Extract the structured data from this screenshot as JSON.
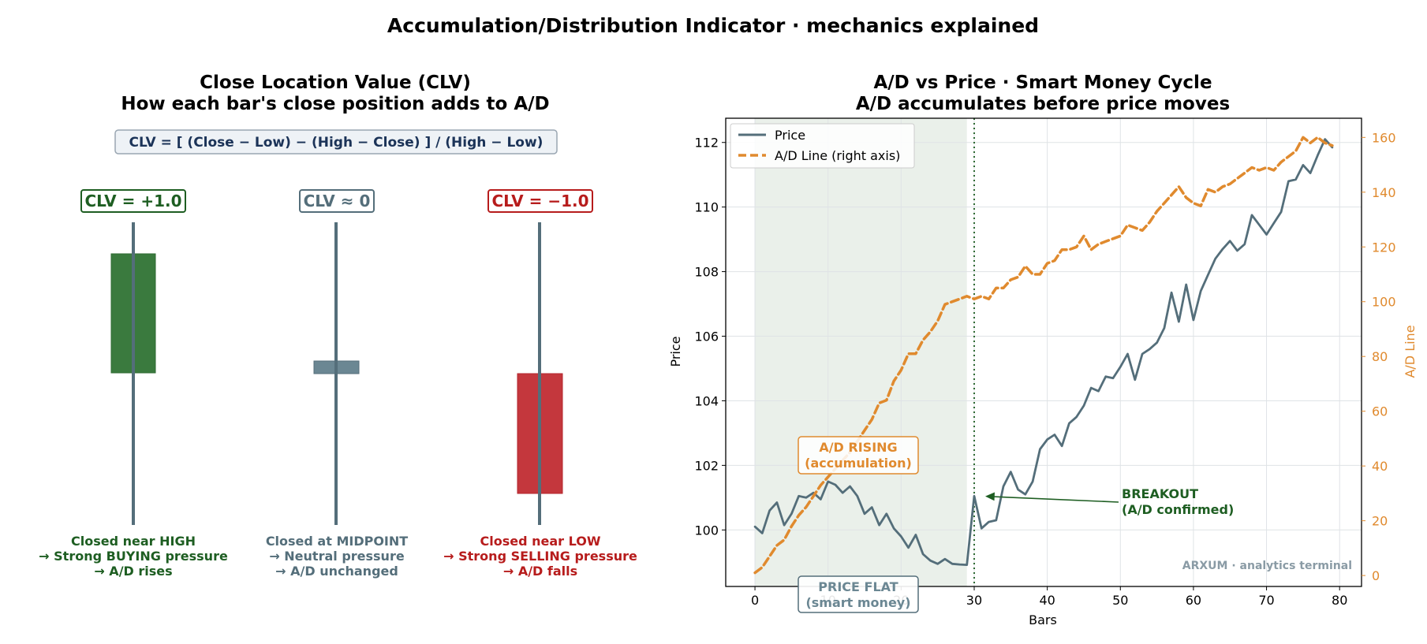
{
  "title": "Accumulation/Distribution Indicator · mechanics explained",
  "colors": {
    "green": "#1e5e22",
    "green_fill": "#3a7a3e",
    "slate": "#546e7a",
    "slate_fill": "#6b8793",
    "red": "#b71c1c",
    "red_fill": "#c4373d",
    "orange": "#e08a2e",
    "formula_text": "#1b3358",
    "shade": "#e3ebe3"
  },
  "left": {
    "title_line1": "Close Location Value (CLV)",
    "title_line2": "How each bar's close position adds to A/D",
    "formula": "CLV = [ (Close − Low) − (High − Close) ] / (High − Low)",
    "candles": [
      {
        "label": "CLV = +1.0",
        "color_key": "green",
        "lines": [
          "Closed near HIGH",
          "→ Strong BUYING pressure",
          "→ A/D rises"
        ]
      },
      {
        "label": "CLV ≈ 0",
        "color_key": "slate",
        "lines": [
          "Closed at MIDPOINT",
          "→ Neutral pressure",
          "→ A/D unchanged"
        ]
      },
      {
        "label": "CLV = −1.0",
        "color_key": "red",
        "lines": [
          "Closed near LOW",
          "→ Strong SELLING pressure",
          "→ A/D falls"
        ]
      }
    ]
  },
  "right": {
    "title_line1": "A/D vs Price · Smart Money Cycle",
    "title_line2": "A/D accumulates before price moves",
    "watermark": "ARXUM · analytics terminal",
    "annotations": {
      "ad_rising": [
        "A/D RISING",
        "(accumulation)"
      ],
      "price_flat": [
        "PRICE FLAT",
        "(smart money)"
      ],
      "breakout": [
        "BREAKOUT",
        "(A/D confirmed)"
      ]
    }
  },
  "chart_data": {
    "type": "line",
    "xlabel": "Bars",
    "ylabel": "Price",
    "y2label": "A/D Line",
    "xlim": [
      -4,
      83
    ],
    "ylim": [
      98.25,
      112.75
    ],
    "y2lim": [
      -4,
      167
    ],
    "xticks": [
      0,
      10,
      20,
      30,
      40,
      50,
      60,
      70,
      80
    ],
    "yticks": [
      100,
      102,
      104,
      106,
      108,
      110,
      112
    ],
    "y2ticks": [
      0,
      20,
      40,
      60,
      80,
      100,
      120,
      140,
      160
    ],
    "grid": true,
    "legend": "top-left",
    "shaded_region": [
      0,
      29
    ],
    "breakout_x": 30,
    "series": [
      {
        "name": "Price",
        "axis": "left",
        "color": "#546e7a",
        "style": "solid",
        "x": [
          0,
          1,
          2,
          3,
          4,
          5,
          6,
          7,
          8,
          9,
          10,
          11,
          12,
          13,
          14,
          15,
          16,
          17,
          18,
          19,
          20,
          21,
          22,
          23,
          24,
          25,
          26,
          27,
          28,
          29,
          30,
          31,
          32,
          33,
          34,
          35,
          36,
          37,
          38,
          39,
          40,
          41,
          42,
          43,
          44,
          45,
          46,
          47,
          48,
          49,
          50,
          51,
          52,
          53,
          54,
          55,
          56,
          57,
          58,
          59,
          60,
          61,
          62,
          63,
          64,
          65,
          66,
          67,
          68,
          69,
          70,
          71,
          72,
          73,
          74,
          75,
          76,
          77,
          78,
          79
        ],
        "values": [
          100.1,
          99.9,
          100.6,
          100.85,
          100.15,
          100.5,
          101.05,
          101.0,
          101.15,
          100.95,
          101.5,
          101.4,
          101.15,
          101.35,
          101.05,
          100.5,
          100.7,
          100.15,
          100.5,
          100.05,
          99.8,
          99.45,
          99.85,
          99.25,
          99.05,
          98.95,
          99.1,
          98.95,
          98.93,
          98.92,
          101.05,
          100.05,
          100.25,
          100.3,
          101.35,
          101.8,
          101.25,
          101.1,
          101.5,
          102.5,
          102.8,
          102.95,
          102.6,
          103.3,
          103.5,
          103.85,
          104.4,
          104.3,
          104.75,
          104.7,
          105.05,
          105.45,
          104.65,
          105.45,
          105.6,
          105.8,
          106.25,
          107.35,
          106.45,
          107.6,
          106.5,
          107.4,
          107.9,
          108.4,
          108.7,
          108.95,
          108.65,
          108.85,
          109.75,
          109.45,
          109.15,
          109.5,
          109.85,
          110.8,
          110.85,
          111.3,
          111.05,
          111.6,
          112.1,
          111.85
        ]
      },
      {
        "name": "A/D Line (right axis)",
        "axis": "right",
        "color": "#e08a2e",
        "style": "dashed",
        "x": [
          0,
          1,
          2,
          3,
          4,
          5,
          6,
          7,
          8,
          9,
          10,
          11,
          12,
          13,
          14,
          15,
          16,
          17,
          18,
          19,
          20,
          21,
          22,
          23,
          24,
          25,
          26,
          27,
          28,
          29,
          30,
          31,
          32,
          33,
          34,
          35,
          36,
          37,
          38,
          39,
          40,
          41,
          42,
          43,
          44,
          45,
          46,
          47,
          48,
          49,
          50,
          51,
          52,
          53,
          54,
          55,
          56,
          57,
          58,
          59,
          60,
          61,
          62,
          63,
          64,
          65,
          66,
          67,
          68,
          69,
          70,
          71,
          72,
          73,
          74,
          75,
          76,
          77,
          78,
          79
        ],
        "values": [
          1,
          3,
          7,
          11,
          13,
          18,
          22,
          25,
          29,
          33,
          36,
          39,
          42,
          45,
          49,
          53,
          57,
          63,
          64,
          71,
          75,
          81,
          81,
          86,
          89,
          93,
          99,
          100,
          101,
          102,
          101,
          102,
          101,
          105,
          105,
          108,
          109,
          113,
          110,
          110,
          114,
          115,
          119,
          119,
          120,
          124,
          119,
          121,
          122,
          123,
          124,
          128,
          127,
          126,
          129,
          133,
          136,
          139,
          142,
          138,
          136,
          135,
          141,
          140,
          142,
          143,
          145,
          147,
          149,
          148,
          149,
          148,
          151,
          153,
          155,
          160,
          158,
          160,
          158,
          157
        ]
      }
    ]
  }
}
